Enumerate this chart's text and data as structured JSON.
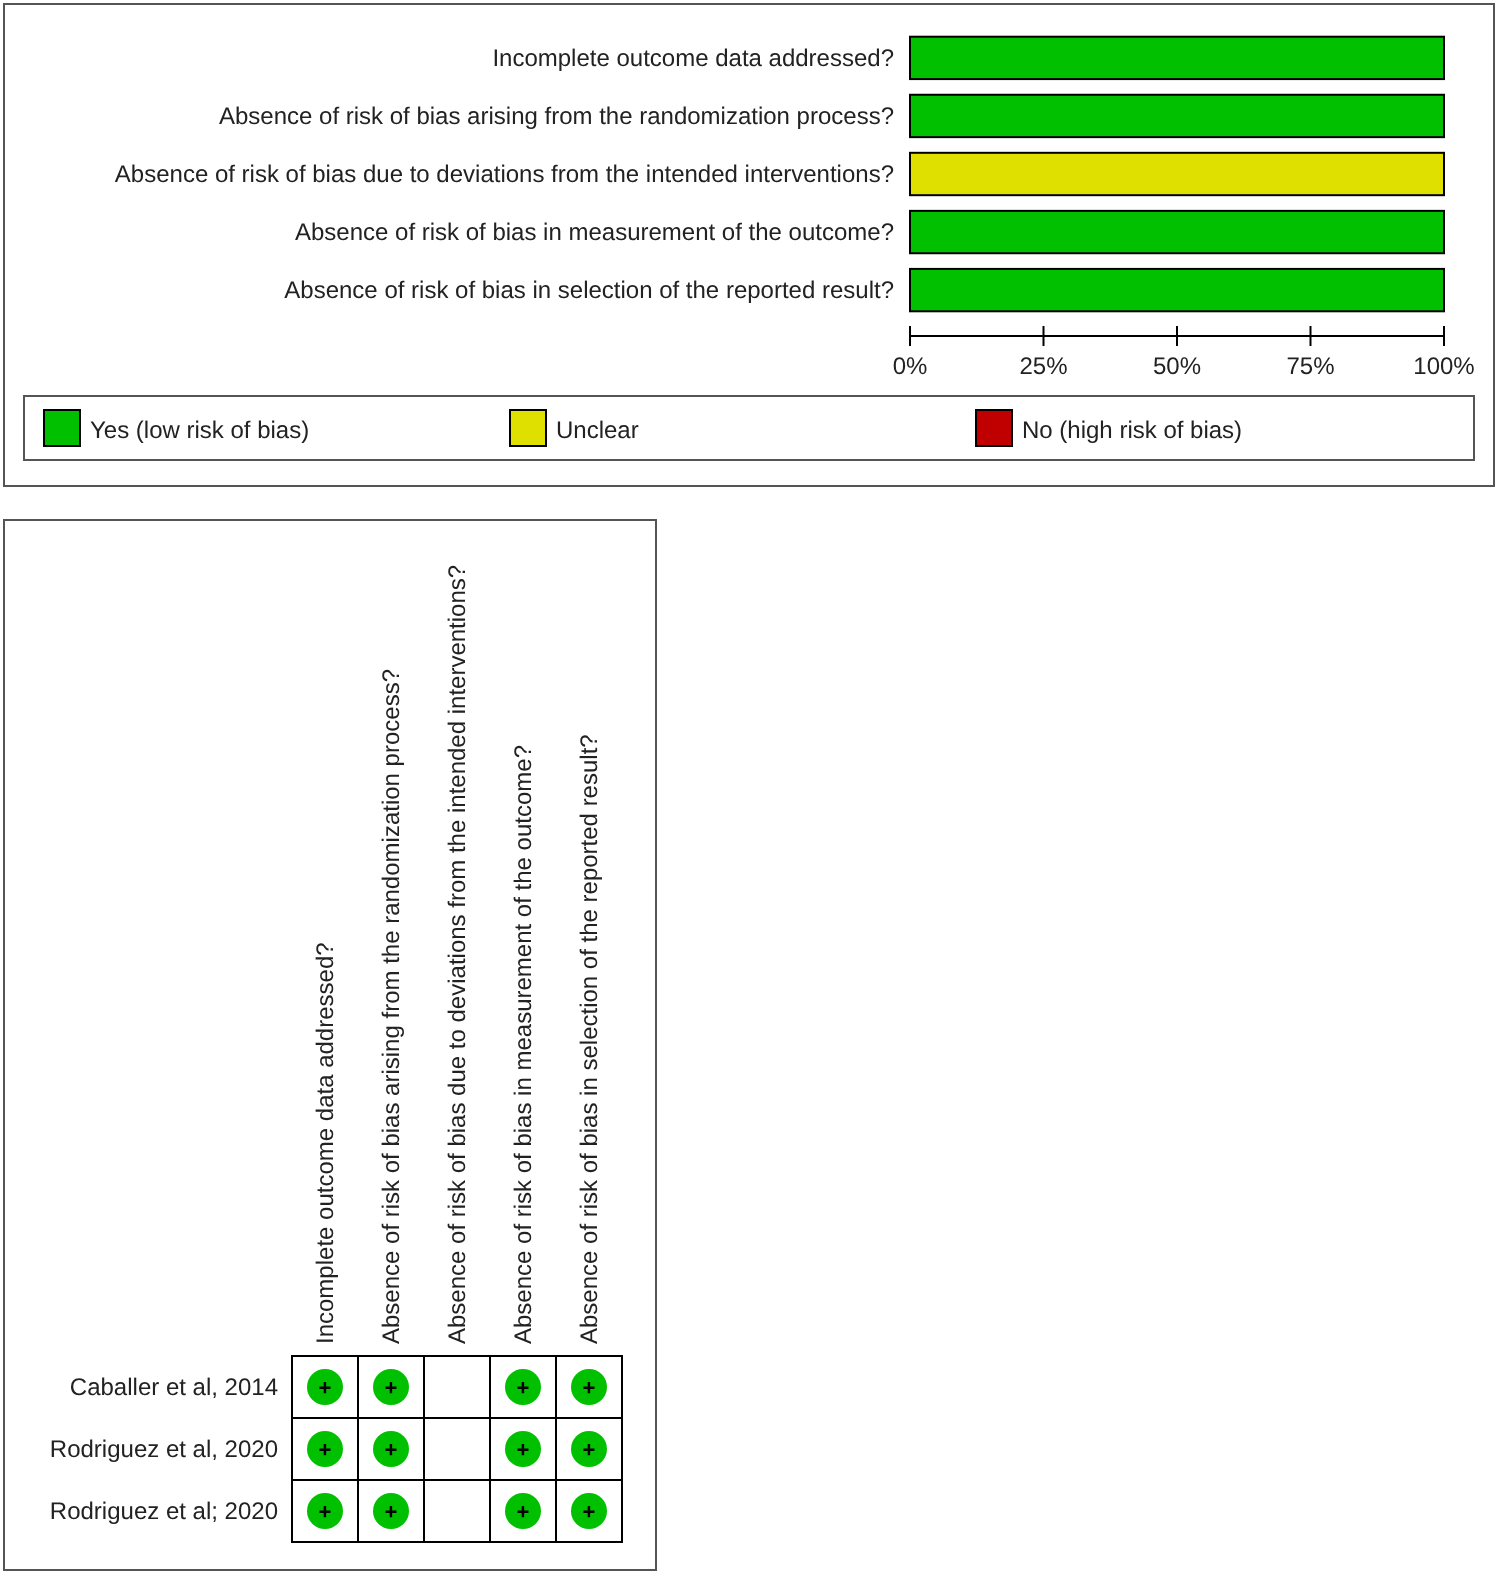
{
  "chart_data": [
    {
      "type": "bar",
      "orientation": "horizontal",
      "stacked": true,
      "categories": [
        "Incomplete outcome data addressed?",
        "Absence of risk of bias arising from the randomization process?",
        "Absence of risk of bias due to deviations from the intended interventions?",
        "Absence of risk of bias in measurement of the outcome?",
        "Absence of risk of bias in selection of the reported result?"
      ],
      "series": [
        {
          "name": "Yes (low risk of bias)",
          "color": "#00c000",
          "values": [
            100,
            100,
            0,
            100,
            100
          ]
        },
        {
          "name": "Unclear",
          "color": "#e0e000",
          "values": [
            0,
            0,
            100,
            0,
            0
          ]
        },
        {
          "name": "No (high risk of bias)",
          "color": "#c00000",
          "values": [
            0,
            0,
            0,
            0,
            0
          ]
        }
      ],
      "xlim": [
        0,
        100
      ],
      "xticks": [
        {
          "value": 0,
          "label": "0%"
        },
        {
          "value": 25,
          "label": "25%"
        },
        {
          "value": 50,
          "label": "50%"
        },
        {
          "value": 75,
          "label": "75%"
        },
        {
          "value": 100,
          "label": "100%"
        }
      ],
      "grid": false,
      "legend": "bottom"
    },
    {
      "type": "heatmap",
      "color": "#00c000",
      "categories": [
        "Incomplete outcome data addressed?",
        "Absence of risk of bias arising from the randomization process?",
        "Absence of risk of bias due to deviations from the intended interventions?",
        "Absence of risk of bias in measurement of the outcome?",
        "Absence of risk of bias in selection of the reported result?"
      ],
      "y_categories": [
        "Caballer et al, 2014",
        "Rodriguez et al, 2020",
        "Rodriguez et al; 2020"
      ],
      "cells": [
        [
          "+",
          "+",
          null,
          "+",
          "+"
        ],
        [
          "+",
          "+",
          null,
          "+",
          "+"
        ],
        [
          "+",
          "+",
          null,
          "+",
          "+"
        ]
      ]
    }
  ]
}
